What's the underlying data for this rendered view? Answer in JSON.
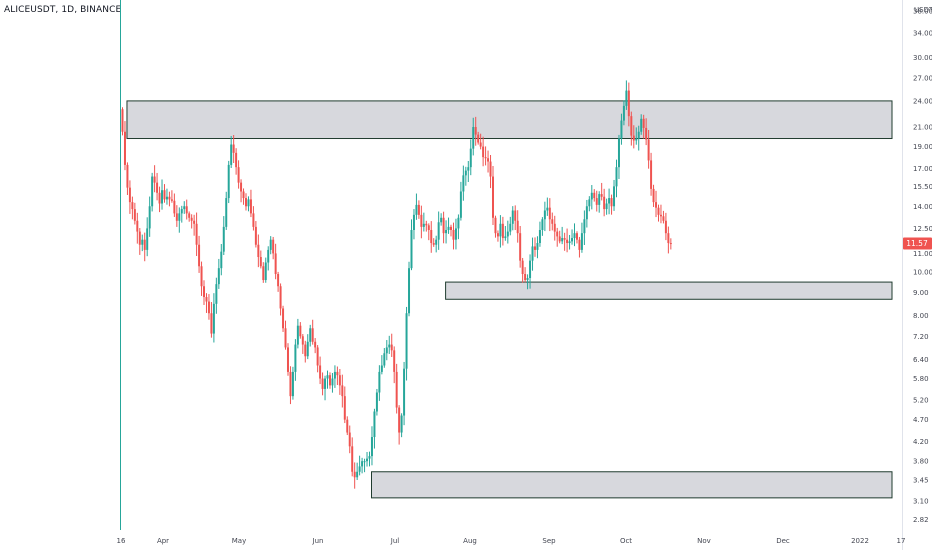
{
  "header": {
    "symbol_title": "ALICEUSDT, 1D, BINANCE"
  },
  "chart_data": {
    "type": "candlestick",
    "title": "ALICEUSDT, 1D, BINANCE",
    "currency_label": "USDT",
    "y_scale": "log",
    "ylim": [
      2.7,
      39
    ],
    "y_ticks": [
      "38.00",
      "34.00",
      "30.00",
      "27.00",
      "24.00",
      "21.00",
      "19.00",
      "17.00",
      "15.50",
      "14.00",
      "12.50",
      "11.00",
      "10.00",
      "9.00",
      "8.00",
      "7.20",
      "6.40",
      "5.80",
      "5.20",
      "4.70",
      "4.20",
      "3.80",
      "3.45",
      "3.10",
      "2.82"
    ],
    "x_ticks": [
      "16",
      "Apr",
      "May",
      "Jun",
      "Jul",
      "Aug",
      "Sep",
      "Oct",
      "Nov",
      "Dec",
      "2022",
      "17"
    ],
    "last_price": "11.57",
    "colors": {
      "up": "#26a69a",
      "down": "#ef5350",
      "last_price_bg": "#ef5350",
      "vertical_line": "#26a69a",
      "zone_fill": "#c9cbd1",
      "zone_border": "#1f3b2e"
    },
    "zones": [
      {
        "name": "resistance",
        "low": 19.8,
        "high": 24.0,
        "start_index": 1
      },
      {
        "name": "support-mid",
        "low": 8.7,
        "high": 9.5,
        "start_index": 130
      },
      {
        "name": "support-low",
        "low": 3.15,
        "high": 3.6,
        "start_index": 100
      }
    ],
    "closes": [
      20.5,
      17.3,
      15.4,
      14.3,
      13.8,
      13.0,
      12.3,
      11.5,
      11.8,
      11.2,
      12.5,
      14.0,
      16.3,
      15.8,
      15.0,
      14.2,
      15.2,
      14.5,
      14.7,
      14.5,
      14.4,
      13.5,
      13.0,
      13.5,
      13.8,
      14.0,
      13.5,
      13.2,
      13.0,
      12.8,
      11.5,
      10.3,
      9.3,
      8.8,
      8.6,
      8.1,
      7.3,
      8.5,
      9.4,
      10.2,
      11.1,
      12.6,
      14.6,
      17.3,
      19.2,
      18.4,
      17.1,
      15.8,
      15.1,
      14.6,
      14.0,
      14.5,
      13.5,
      12.6,
      11.5,
      10.8,
      10.3,
      9.6,
      10.5,
      11.2,
      11.8,
      11.0,
      9.9,
      9.3,
      8.3,
      7.5,
      6.8,
      6.0,
      5.3,
      6.0,
      6.9,
      7.6,
      7.2,
      6.9,
      6.5,
      7.0,
      7.5,
      7.0,
      6.8,
      6.2,
      5.8,
      5.5,
      5.8,
      5.9,
      5.6,
      5.8,
      6.0,
      5.9,
      5.6,
      5.3,
      4.7,
      4.4,
      4.1,
      3.6,
      3.5,
      3.6,
      3.7,
      3.8,
      3.8,
      3.85,
      3.9,
      4.3,
      4.9,
      5.4,
      6.0,
      6.2,
      6.6,
      6.8,
      6.9,
      6.7,
      6.0,
      5.0,
      4.4,
      4.8,
      6.1,
      8.1,
      10.2,
      12.4,
      13.4,
      14.1,
      13.4,
      12.6,
      12.8,
      12.7,
      12.4,
      11.6,
      11.5,
      11.8,
      12.9,
      13.2,
      12.2,
      12.4,
      12.6,
      12.4,
      11.8,
      12.5,
      13.2,
      15.1,
      16.4,
      16.8,
      17.1,
      18.8,
      21.0,
      20.2,
      19.4,
      19.0,
      18.0,
      17.9,
      17.6,
      16.3,
      13.2,
      12.2,
      12.0,
      12.8,
      11.9,
      12.0,
      12.3,
      12.8,
      13.7,
      13.0,
      12.2,
      10.6,
      9.9,
      9.6,
      9.7,
      10.6,
      11.4,
      11.2,
      11.6,
      12.4,
      13.1,
      13.7,
      13.9,
      13.1,
      12.8,
      12.3,
      12.0,
      11.7,
      11.9,
      11.8,
      11.6,
      11.7,
      11.9,
      12.2,
      11.8,
      11.2,
      12.2,
      13.1,
      14.0,
      14.5,
      15.0,
      14.6,
      14.1,
      14.9,
      14.7,
      13.8,
      14.2,
      14.6,
      14.0,
      15.5,
      17.1,
      19.8,
      21.7,
      23.4,
      25.3,
      22.2,
      20.1,
      19.6,
      19.8,
      20.5,
      21.9,
      20.9,
      19.7,
      17.7,
      15.3,
      14.3,
      13.9,
      13.4,
      13.3,
      13.0,
      12.2,
      11.6,
      11.57
    ]
  }
}
